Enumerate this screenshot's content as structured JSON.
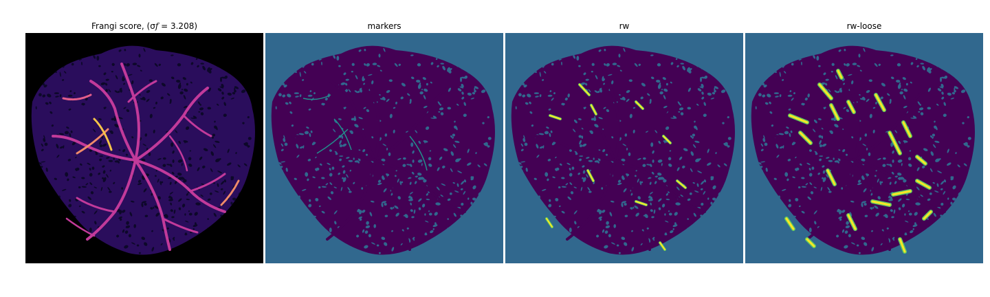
{
  "figure": {
    "panels": [
      {
        "id": "frangi",
        "title": "Frangi score, (σ",
        "title_sub": "f",
        "title_tail": " = 3.208)",
        "colormap": "magma"
      },
      {
        "id": "markers",
        "title": "markers",
        "colormap": "viridis"
      },
      {
        "id": "rw",
        "title": "rw",
        "colormap": "viridis"
      },
      {
        "id": "rw-loose",
        "title": "rw-loose",
        "colormap": "viridis"
      }
    ],
    "colors": {
      "background_black": "#000000",
      "tissue_dark": "#2a0d5c",
      "vessel_magenta": "#c23a9a",
      "vessel_bright": "#f7c44a",
      "viridis_bg": "#31688e",
      "viridis_dark": "#440154",
      "viridis_yellow": "#fde725",
      "viridis_green": "#5ec962"
    }
  }
}
